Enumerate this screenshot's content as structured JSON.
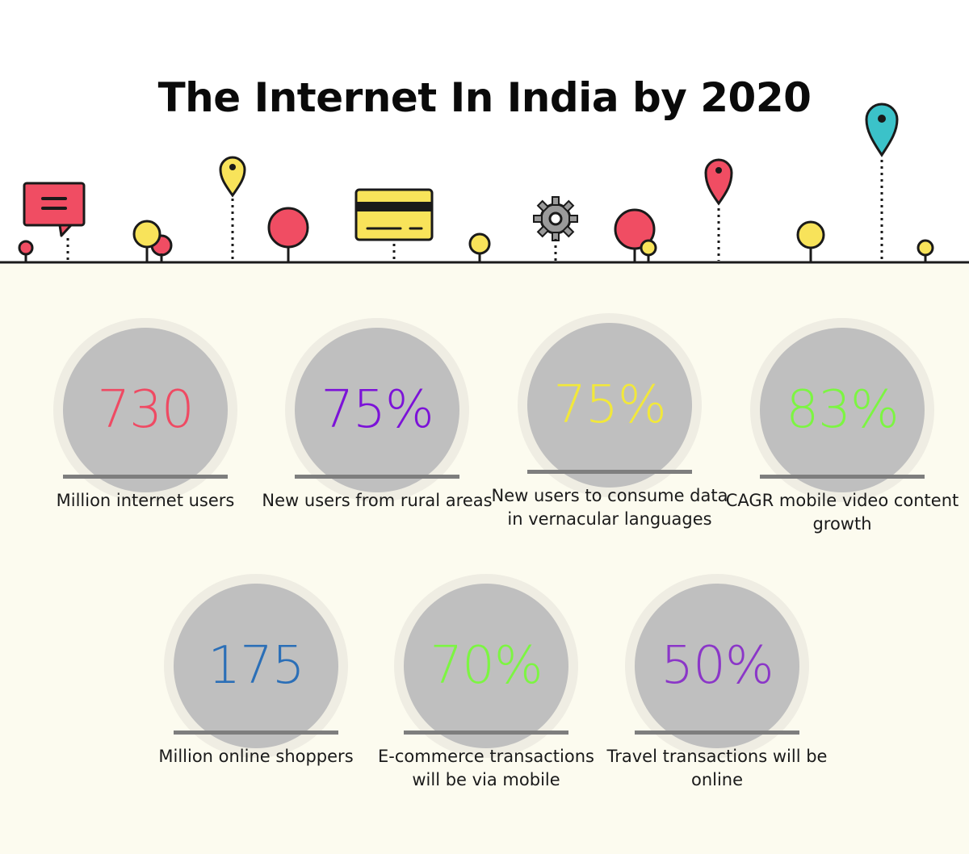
{
  "title": "The Internet In India by 2020",
  "stats": [
    {
      "value": "730",
      "label": "Million internet users",
      "color": "#ef4a63"
    },
    {
      "value": "75%",
      "label": "New users from rural areas",
      "color": "#7c12d8"
    },
    {
      "value": "75%",
      "label": "New users to consume data in vernacular languages",
      "color": "#f2e83a"
    },
    {
      "value": "83%",
      "label": "CAGR mobile video content growth",
      "color": "#7cf542"
    },
    {
      "value": "175",
      "label": "Million online shoppers",
      "color": "#2b6fb7"
    },
    {
      "value": "70%",
      "label": "E-commerce transactions will be via mobile",
      "color": "#7cf542"
    },
    {
      "value": "50%",
      "label": "Travel transactions will be online",
      "color": "#8b36c8"
    }
  ],
  "icons": {
    "chat": "chat-bubble-icon",
    "card": "credit-card-icon",
    "gear": "gear-icon",
    "pins": "map-pin-icon",
    "trees": "tree-icon"
  },
  "colors": {
    "red": "#f04d63",
    "yellow": "#f8e35a",
    "teal": "#3bc2c9",
    "ground": "#1a1a1a",
    "panel": "#fcfbef"
  }
}
